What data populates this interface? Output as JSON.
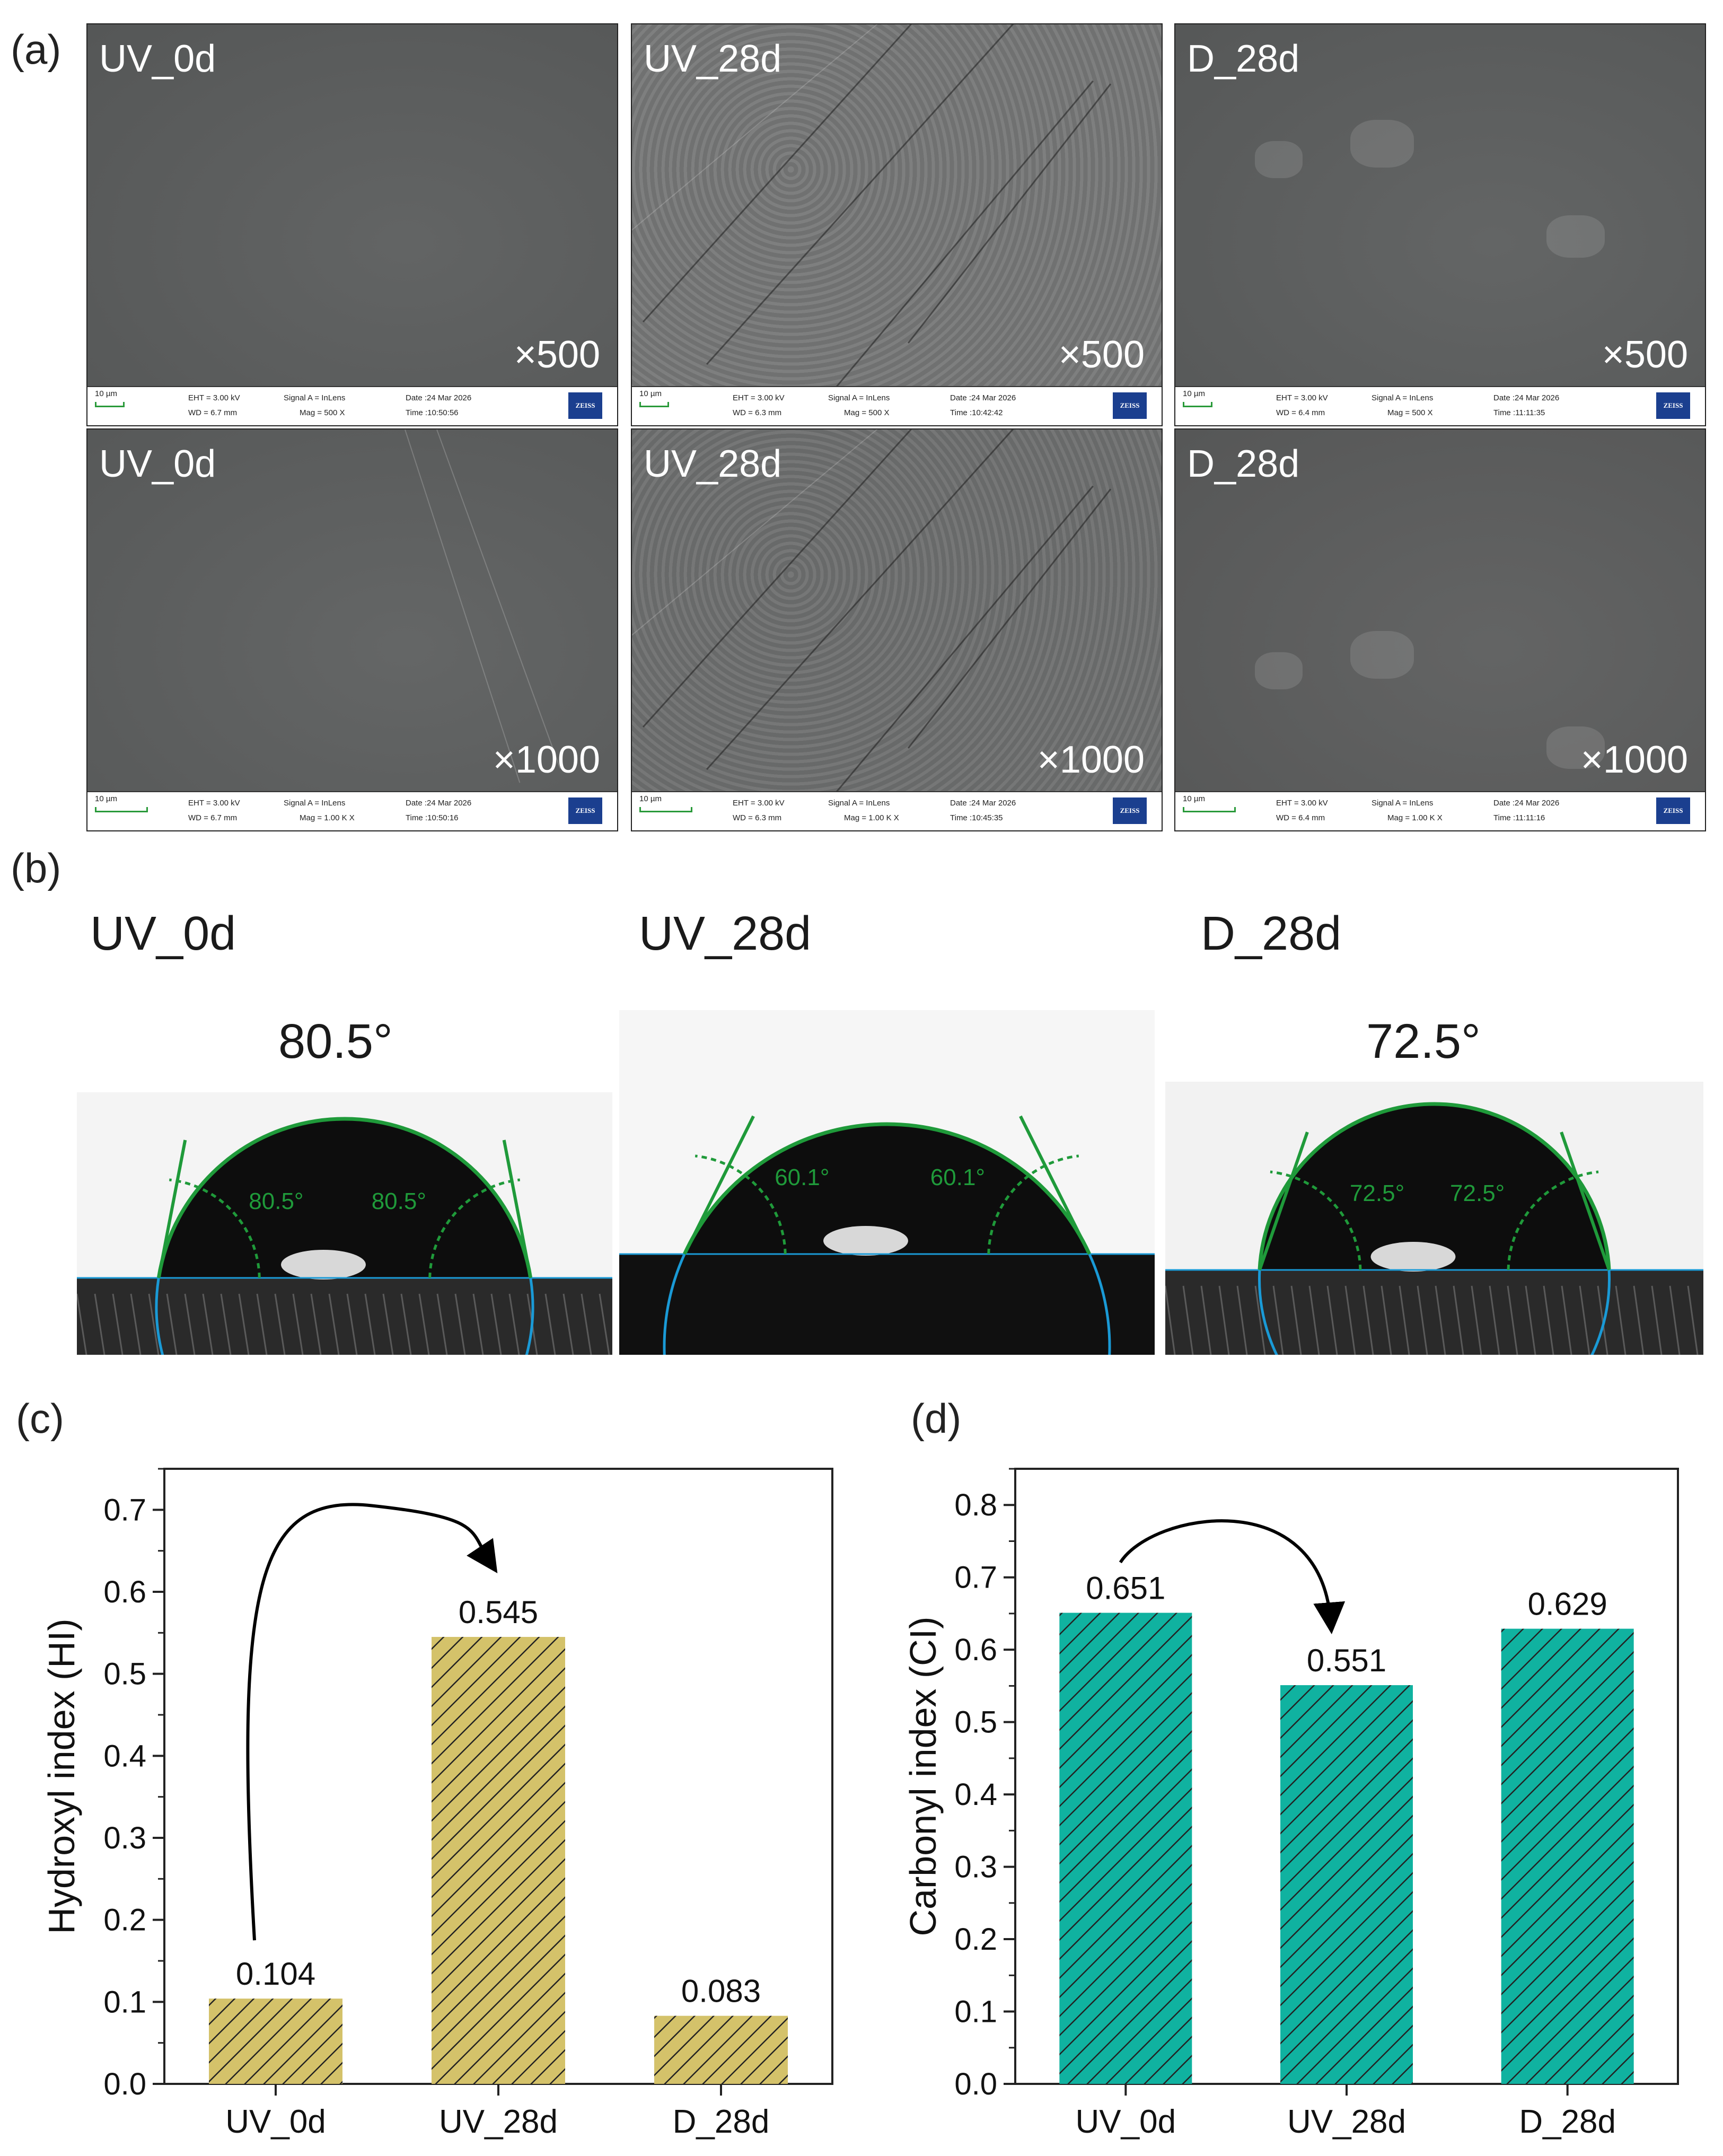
{
  "panels": {
    "a": "(a)",
    "b": "(b)",
    "c": "(c)",
    "d": "(d)"
  },
  "sem": [
    {
      "sample": "UV_0d",
      "mag": "×500",
      "scale": "10 µm",
      "eht": "EHT = 3.00 kV",
      "wd": "WD = 6.7 mm",
      "signal": "Signal A = InLens",
      "magtxt": "Mag = 500 X",
      "date": "Date :24 Mar 2026",
      "time": "Time :10:50:56",
      "logo": "ZEISS"
    },
    {
      "sample": "UV_28d",
      "mag": "×500",
      "scale": "10 µm",
      "eht": "EHT = 3.00 kV",
      "wd": "WD = 6.3 mm",
      "signal": "Signal A = InLens",
      "magtxt": "Mag = 500 X",
      "date": "Date :24 Mar 2026",
      "time": "Time :10:42:42",
      "logo": "ZEISS"
    },
    {
      "sample": "D_28d",
      "mag": "×500",
      "scale": "10 µm",
      "eht": "EHT = 3.00 kV",
      "wd": "WD = 6.4 mm",
      "signal": "Signal A = InLens",
      "magtxt": "Mag = 500 X",
      "date": "Date :24 Mar 2026",
      "time": "Time :11:11:35",
      "logo": "ZEISS"
    },
    {
      "sample": "UV_0d",
      "mag": "×1000",
      "scale": "10 µm",
      "eht": "EHT = 3.00 kV",
      "wd": "WD = 6.7 mm",
      "signal": "Signal A = InLens",
      "magtxt": "Mag = 1.00 K X",
      "date": "Date :24 Mar 2026",
      "time": "Time :10:50:16",
      "logo": "ZEISS"
    },
    {
      "sample": "UV_28d",
      "mag": "×1000",
      "scale": "10 µm",
      "eht": "EHT = 3.00 kV",
      "wd": "WD = 6.3 mm",
      "signal": "Signal A = InLens",
      "magtxt": "Mag = 1.00 K X",
      "date": "Date :24 Mar 2026",
      "time": "Time :10:45:35",
      "logo": "ZEISS"
    },
    {
      "sample": "D_28d",
      "mag": "×1000",
      "scale": "10 µm",
      "eht": "EHT = 3.00 kV",
      "wd": "WD = 6.4 mm",
      "signal": "Signal A = InLens",
      "magtxt": "Mag = 1.00 K X",
      "date": "Date :24 Mar 2026",
      "time": "Time :11:11:16",
      "logo": "ZEISS"
    }
  ],
  "contact_angle": [
    {
      "sample": "UV_0d",
      "angle": "80.5°",
      "left": "80.5°",
      "right": "80.5°"
    },
    {
      "sample": "UV_28d",
      "angle": "60.1°",
      "left": "60.1°",
      "right": "60.1°"
    },
    {
      "sample": "D_28d",
      "angle": "72.5°",
      "left": "72.5°",
      "right": "72.5°"
    }
  ],
  "colors": {
    "hi_bar": "#d4c26a",
    "ci_bar": "#10b2a0",
    "fit_green": "#1f9a3a",
    "baseline_blue": "#1a9ad6"
  },
  "chart_data": [
    {
      "type": "bar",
      "categories": [
        "UV_0d",
        "UV_28d",
        "D_28d"
      ],
      "values": [
        0.104,
        0.545,
        0.083
      ],
      "data_labels": [
        "0.104",
        "0.545",
        "0.083"
      ],
      "ylabel": "Hydroxyl index (HI)",
      "xlabel": "",
      "ylim": [
        0,
        0.75
      ],
      "yticks": [
        "0.0",
        "0.1",
        "0.2",
        "0.3",
        "0.4",
        "0.5",
        "0.6",
        "0.7"
      ],
      "hatch": true,
      "arrow": {
        "from": "UV_0d",
        "to": "UV_28d"
      }
    },
    {
      "type": "bar",
      "categories": [
        "UV_0d",
        "UV_28d",
        "D_28d"
      ],
      "values": [
        0.651,
        0.551,
        0.629
      ],
      "data_labels": [
        "0.651",
        "0.551",
        "0.629"
      ],
      "ylabel": "Carbonyl index (CI)",
      "xlabel": "",
      "ylim": [
        0,
        0.85
      ],
      "yticks": [
        "0.0",
        "0.1",
        "0.2",
        "0.3",
        "0.4",
        "0.5",
        "0.6",
        "0.7",
        "0.8"
      ],
      "hatch": true,
      "arrow": {
        "from": "UV_0d",
        "to": "UV_28d"
      }
    }
  ]
}
